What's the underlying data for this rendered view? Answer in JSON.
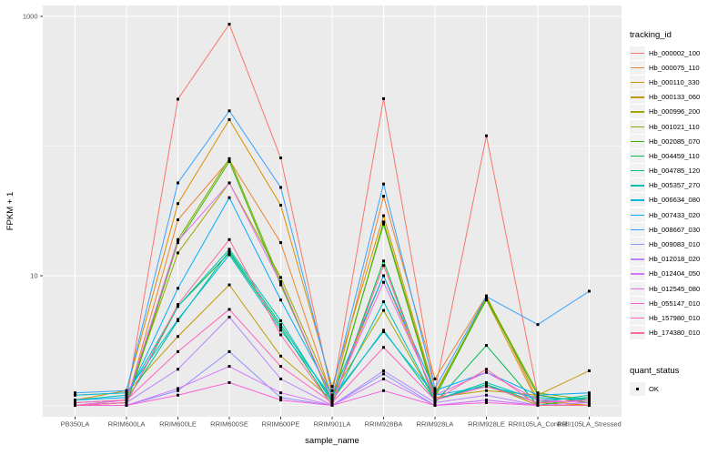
{
  "chart_data": {
    "type": "line",
    "title": "",
    "xlabel": "sample_name",
    "ylabel": "FPKM + 1",
    "x_axis": {
      "title": "sample_name",
      "categories": [
        "PB350LA",
        "RRIM600LA",
        "RRIM600LE",
        "RRIM600SE",
        "RRIM600PE",
        "RRIM901LA",
        "RRIM928BA",
        "RRIM928LA",
        "RRIM928LE",
        "RRII105LA_Control",
        "RRII105LA_Stressed"
      ]
    },
    "y_axis": {
      "title": "FPKM + 1",
      "scale": "log10",
      "tick_labels": [
        "1000",
        "10"
      ],
      "tick_values": [
        1000,
        10
      ],
      "minor_gridline_values": [
        100,
        1
      ],
      "range": [
        0.85,
        1200
      ]
    },
    "legend": {
      "title": "tracking_id",
      "position": "right"
    },
    "point_legend": {
      "title": "quant_status",
      "entries": [
        {
          "label": "OK",
          "color": "#000000"
        }
      ]
    },
    "panel_background": "#EBEBEB",
    "gridline_color": "#FFFFFF",
    "grid": true,
    "series": [
      {
        "name": "Hb_000002_100",
        "color": "#F8766D",
        "values": [
          1.0,
          1.1,
          230,
          870,
          81,
          1.2,
          232,
          1.3,
          120,
          1.2,
          1.05
        ]
      },
      {
        "name": "Hb_000075_110",
        "color": "#EA8331",
        "values": [
          1.0,
          1.05,
          27,
          78,
          18,
          1.15,
          41,
          1.6,
          7.0,
          1.1,
          1.0
        ]
      },
      {
        "name": "Hb_000110_330",
        "color": "#D89000",
        "values": [
          1.1,
          1.3,
          36,
          160,
          35,
          1.4,
          29,
          1.25,
          6.5,
          1.05,
          1.0
        ]
      },
      {
        "name": "Hb_000133_060",
        "color": "#C09B00",
        "values": [
          1.2,
          1.25,
          3.4,
          8.5,
          2.4,
          1.1,
          10,
          1.15,
          1.3,
          1.2,
          1.85
        ]
      },
      {
        "name": "Hb_000996_200",
        "color": "#A3A500",
        "values": [
          1.0,
          1.1,
          15,
          52,
          9.7,
          1.2,
          5.4,
          1.1,
          1.45,
          1.0,
          1.0
        ]
      },
      {
        "name": "Hb_001021_110",
        "color": "#7CAE00",
        "values": [
          1.0,
          1.05,
          19,
          80,
          9.0,
          1.05,
          26,
          1.2,
          6.8,
          1.25,
          1.1
        ]
      },
      {
        "name": "Hb_002085_070",
        "color": "#39B600",
        "values": [
          1.0,
          1.0,
          18,
          76,
          8.5,
          1.1,
          25,
          1.15,
          6.6,
          1.2,
          1.05
        ]
      },
      {
        "name": "Hb_004459_110",
        "color": "#00BB4E",
        "values": [
          1.0,
          1.05,
          5.8,
          15,
          4.0,
          1.0,
          13,
          1.05,
          2.9,
          1.0,
          1.15
        ]
      },
      {
        "name": "Hb_004785_120",
        "color": "#00C087",
        "values": [
          1.05,
          1.1,
          4.5,
          15.5,
          4.2,
          1.1,
          3.8,
          1.1,
          1.45,
          1.05,
          1.2
        ]
      },
      {
        "name": "Hb_005357_270",
        "color": "#00C0B8",
        "values": [
          1.1,
          1.2,
          5.8,
          16,
          4.5,
          1.05,
          6.3,
          1.1,
          1.5,
          1.1,
          1.15
        ]
      },
      {
        "name": "Hb_006634_080",
        "color": "#00BAE0",
        "values": [
          1.2,
          1.25,
          4.6,
          14.5,
          3.8,
          1.15,
          3.7,
          1.2,
          1.4,
          1.15,
          1.1
        ]
      },
      {
        "name": "Hb_007433_020",
        "color": "#00ACFC",
        "values": [
          1.1,
          1.15,
          8.0,
          40,
          6.5,
          1.2,
          10,
          1.3,
          1.8,
          1.2,
          1.25
        ]
      },
      {
        "name": "Hb_008667_030",
        "color": "#35A2FF",
        "values": [
          1.25,
          1.3,
          52,
          187,
          48,
          1.3,
          51,
          1.35,
          6.9,
          4.2,
          7.6
        ]
      },
      {
        "name": "Hb_009083_010",
        "color": "#8B93FF",
        "values": [
          1.0,
          1.0,
          1.3,
          2.6,
          1.15,
          1.0,
          1.75,
          1.0,
          1.1,
          1.0,
          1.0
        ]
      },
      {
        "name": "Hb_012018_020",
        "color": "#B983FF",
        "values": [
          1.0,
          1.05,
          1.9,
          4.8,
          1.6,
          1.0,
          1.85,
          1.05,
          1.2,
          1.0,
          1.05
        ]
      },
      {
        "name": "Hb_012404_050",
        "color": "#D575FE",
        "values": [
          1.0,
          1.0,
          1.35,
          2.0,
          1.25,
          1.0,
          1.6,
          1.0,
          1.1,
          1.0,
          1.0
        ]
      },
      {
        "name": "Hb_012545_080",
        "color": "#E76BF3",
        "values": [
          1.0,
          1.1,
          18.5,
          52,
          8.8,
          1.1,
          8.9,
          1.2,
          1.8,
          1.1,
          1.05
        ]
      },
      {
        "name": "Hb_055147_010",
        "color": "#F962DD",
        "values": [
          1.0,
          1.0,
          1.2,
          1.5,
          1.1,
          1.0,
          1.3,
          1.0,
          1.05,
          1.0,
          1.0
        ]
      },
      {
        "name": "Hb_157980_010",
        "color": "#FF62BC",
        "values": [
          1.05,
          1.1,
          2.6,
          5.5,
          2.0,
          1.05,
          2.8,
          1.1,
          1.4,
          1.05,
          1.1
        ]
      },
      {
        "name": "Hb_174380_010",
        "color": "#FF6A98",
        "values": [
          1.0,
          1.05,
          6.0,
          19,
          3.5,
          1.0,
          12,
          1.1,
          1.9,
          1.0,
          1.0
        ]
      }
    ],
    "style": {
      "tick_label_color": "#4D4D4D",
      "tick_mark_color": "#333333",
      "point_color": "#000000"
    }
  }
}
